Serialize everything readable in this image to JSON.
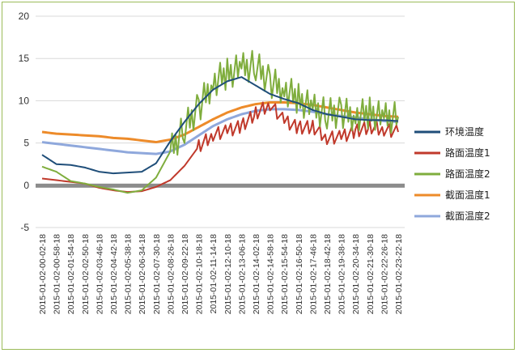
{
  "chart_data": {
    "type": "line",
    "title": "",
    "xlabel": "",
    "ylabel": "",
    "ylim": [
      -5,
      20
    ],
    "y_ticks": [
      -5,
      0,
      5,
      10,
      15,
      20
    ],
    "grid": "horizontal",
    "legend_position": "right",
    "x": [
      "2015-01-02-00-02-18",
      "2015-01-02-00-58-18",
      "2015-01-02-01-54-18",
      "2015-01-02-02-50-18",
      "2015-01-02-03-46-18",
      "2015-01-02-04-42-18",
      "2015-01-02-05-38-18",
      "2015-01-02-06-34-18",
      "2015-01-02-07-30-18",
      "2015-01-02-08-26-18",
      "2015-01-02-09-22-18",
      "2015-01-02-10-18-18",
      "2015-01-02-11-14-18",
      "2015-01-02-12-10-18",
      "2015-01-02-13-06-18",
      "2015-01-02-14-02-18",
      "2015-01-02-14-58-18",
      "2015-01-02-15-54-18",
      "2015-01-02-16-50-18",
      "2015-01-02-17-46-18",
      "2015-01-02-18-42-18",
      "2015-01-02-19-38-18",
      "2015-01-02-20-34-18",
      "2015-01-02-21-30-18",
      "2015-01-02-22-26-18",
      "2015-01-02-23-22-18"
    ],
    "series": [
      {
        "name": "环境温度",
        "color": "#1f4e79",
        "values": [
          3.6,
          2.5,
          2.4,
          2.1,
          1.6,
          1.4,
          1.5,
          1.6,
          2.6,
          5.2,
          7.5,
          9.6,
          11.3,
          12.3,
          12.8,
          11.8,
          10.8,
          10.2,
          9.7,
          8.9,
          8.4,
          8.1,
          7.8,
          7.7,
          7.7,
          7.6
        ]
      },
      {
        "name": "路面温度1",
        "color": "#c0392b",
        "values": [
          0.8,
          0.6,
          0.4,
          0.2,
          -0.3,
          -0.6,
          -0.8,
          -0.7,
          -0.2,
          0.6,
          2.3,
          4.6,
          6.0,
          6.4,
          7.0,
          8.5,
          9.6,
          7.6,
          6.8,
          6.9,
          5.6,
          5.7,
          6.4,
          6.9,
          6.6,
          6.3
        ]
      },
      {
        "name": "路面温度2",
        "color": "#7fad3d",
        "values": [
          2.2,
          1.6,
          0.5,
          0.2,
          -0.2,
          -0.5,
          -0.9,
          -0.6,
          0.9,
          4.0,
          6.8,
          9.2,
          12.2,
          13.2,
          13.8,
          14.2,
          12.2,
          11.4,
          10.2,
          9.0,
          8.5,
          8.6,
          8.2,
          8.6,
          7.9,
          8.1
        ]
      },
      {
        "name": "截面温度1",
        "color": "#ed8b2a",
        "values": [
          6.3,
          6.1,
          6.0,
          5.9,
          5.8,
          5.6,
          5.5,
          5.3,
          5.1,
          5.4,
          6.0,
          6.9,
          7.8,
          8.6,
          9.2,
          9.6,
          9.8,
          9.8,
          9.7,
          9.5,
          9.2,
          8.9,
          8.6,
          8.4,
          8.2,
          8.1
        ]
      },
      {
        "name": "截面温度2",
        "color": "#8fa8dc",
        "values": [
          5.1,
          4.9,
          4.7,
          4.5,
          4.3,
          4.1,
          3.9,
          3.8,
          3.7,
          4.0,
          4.8,
          5.9,
          7.0,
          7.8,
          8.4,
          8.8,
          9.0,
          9.0,
          8.9,
          8.7,
          8.4,
          8.2,
          8.0,
          7.8,
          7.6,
          7.5
        ]
      }
    ]
  }
}
